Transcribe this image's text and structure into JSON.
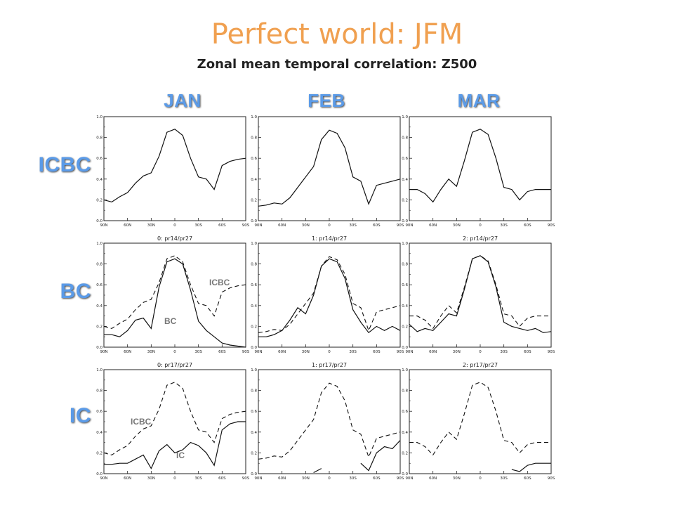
{
  "title": "Perfect world: JFM",
  "subtitle": "Zonal mean temporal correlation: Z500",
  "columns": [
    "JAN",
    "FEB",
    "MAR"
  ],
  "rows": [
    "ICBC",
    "BC",
    "IC"
  ],
  "colors": {
    "title": "#f0a050",
    "headers": "#5b9be8"
  },
  "panel_captions": [
    "0: pr14/pr27",
    "1: pr14/pr27",
    "2: pr14/pr27",
    "0: pr17/pr27",
    "1: pr17/pr27",
    "2: pr17/pr27"
  ],
  "annotations": [
    {
      "panel": "BC-JAN",
      "text": "ICBC"
    },
    {
      "panel": "BC-JAN",
      "text": "BC"
    },
    {
      "panel": "IC-JAN",
      "text": "ICBC"
    },
    {
      "panel": "IC-JAN",
      "text": "IC"
    }
  ],
  "chart_data": {
    "type": "line",
    "x_ticks": [
      "90N",
      "60N",
      "30N",
      "0",
      "30S",
      "60S",
      "90S"
    ],
    "y_ticks": [
      "0.0",
      "0.2",
      "0.4",
      "0.6",
      "0.8",
      "1.0"
    ],
    "xlim": [
      90,
      -90
    ],
    "ylim": [
      0,
      1
    ],
    "x": [
      90,
      80,
      70,
      60,
      50,
      40,
      30,
      20,
      10,
      0,
      -10,
      -20,
      -30,
      -40,
      -50,
      -60,
      -70,
      -80,
      -90
    ],
    "icbc": {
      "JAN": [
        0.2,
        0.18,
        0.23,
        0.27,
        0.36,
        0.43,
        0.46,
        0.62,
        0.85,
        0.88,
        0.82,
        0.6,
        0.42,
        0.4,
        0.3,
        0.53,
        0.57,
        0.59,
        0.6
      ],
      "FEB": [
        0.14,
        0.15,
        0.17,
        0.16,
        0.22,
        0.32,
        0.42,
        0.52,
        0.78,
        0.87,
        0.84,
        0.7,
        0.42,
        0.38,
        0.16,
        0.34,
        0.36,
        0.38,
        0.4
      ],
      "MAR": [
        0.3,
        0.3,
        0.26,
        0.18,
        0.3,
        0.4,
        0.33,
        0.58,
        0.85,
        0.88,
        0.83,
        0.6,
        0.32,
        0.3,
        0.2,
        0.28,
        0.3,
        0.3,
        0.3
      ]
    },
    "bc": {
      "JAN": [
        0.12,
        0.12,
        0.1,
        0.16,
        0.26,
        0.28,
        0.18,
        0.58,
        0.82,
        0.85,
        0.8,
        0.55,
        0.25,
        0.16,
        0.1,
        0.04,
        0.02,
        0.01,
        0.0
      ],
      "FEB": [
        0.1,
        0.1,
        0.12,
        0.16,
        0.26,
        0.38,
        0.32,
        0.5,
        0.78,
        0.85,
        0.82,
        0.66,
        0.36,
        0.24,
        0.14,
        0.2,
        0.16,
        0.2,
        0.16
      ],
      "MAR": [
        0.22,
        0.15,
        0.18,
        0.16,
        0.24,
        0.32,
        0.3,
        0.56,
        0.85,
        0.88,
        0.82,
        0.58,
        0.24,
        0.2,
        0.18,
        0.16,
        0.18,
        0.14,
        0.15
      ]
    },
    "ic": {
      "JAN": [
        0.09,
        0.09,
        0.1,
        0.1,
        0.14,
        0.18,
        0.05,
        0.22,
        0.28,
        0.2,
        0.23,
        0.3,
        0.27,
        0.2,
        0.08,
        0.42,
        0.48,
        0.5,
        0.5
      ],
      "FEB": [
        null,
        null,
        null,
        null,
        null,
        null,
        null,
        0.01,
        0.05,
        null,
        null,
        null,
        null,
        0.1,
        0.03,
        0.2,
        0.26,
        0.24,
        0.32
      ],
      "MAR": [
        null,
        null,
        null,
        null,
        null,
        null,
        null,
        0.02,
        null,
        null,
        null,
        null,
        null,
        0.04,
        0.02,
        0.08,
        0.1,
        0.1,
        0.1
      ]
    }
  }
}
